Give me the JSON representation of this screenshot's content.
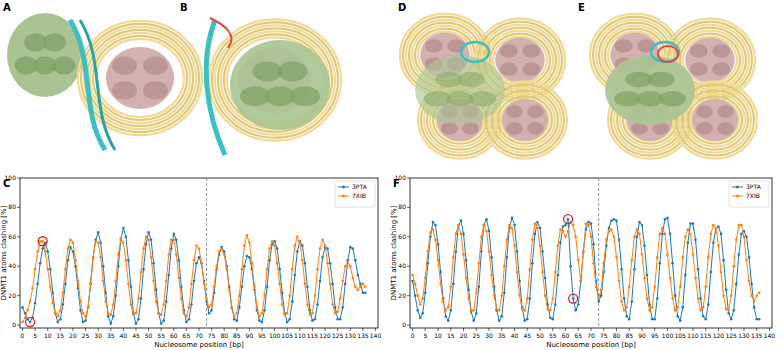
{
  "images": [
    {
      "label": "A"
    },
    {
      "label": "B"
    },
    {
      "label": "D"
    },
    {
      "label": "E"
    }
  ],
  "chart_data": [
    {
      "type": "line",
      "title": "C",
      "x_label": "Nucleosome position [bp]",
      "y_label": "DNMT1 atoms clashing [%]",
      "xlim": [
        -1,
        141
      ],
      "ylim": [
        -2,
        100
      ],
      "xticks": [
        0,
        5,
        10,
        15,
        20,
        25,
        30,
        35,
        40,
        45,
        50,
        55,
        60,
        65,
        70,
        75,
        80,
        85,
        90,
        95,
        100,
        105,
        110,
        115,
        120,
        125,
        130,
        135,
        140
      ],
      "yticks": [
        0,
        20,
        40,
        60,
        80,
        100
      ],
      "legend": "upper right",
      "marker": "o",
      "vline": 73,
      "highlights": [
        {
          "x": 3,
          "y": 2
        },
        {
          "x": 8,
          "y": 57
        }
      ],
      "x": [
        0,
        1,
        2,
        3,
        4,
        5,
        6,
        7,
        8,
        9,
        10,
        11,
        12,
        13,
        14,
        15,
        16,
        17,
        18,
        19,
        20,
        21,
        22,
        23,
        24,
        25,
        26,
        27,
        28,
        29,
        30,
        31,
        32,
        33,
        34,
        35,
        36,
        37,
        38,
        39,
        40,
        41,
        42,
        43,
        44,
        45,
        46,
        47,
        48,
        49,
        50,
        51,
        52,
        53,
        54,
        55,
        56,
        57,
        58,
        59,
        60,
        61,
        62,
        63,
        64,
        65,
        66,
        67,
        68,
        69,
        70,
        71,
        72,
        73,
        74,
        75,
        76,
        77,
        78,
        79,
        80,
        81,
        82,
        83,
        84,
        85,
        86,
        87,
        88,
        89,
        90,
        91,
        92,
        93,
        94,
        95,
        96,
        97,
        98,
        99,
        100,
        101,
        102,
        103,
        104,
        105,
        106,
        107,
        108,
        109,
        110,
        111,
        112,
        113,
        114,
        115,
        116,
        117,
        118,
        119,
        120,
        121,
        122,
        123,
        124,
        125,
        126,
        127,
        128,
        129,
        130,
        131,
        132,
        133,
        134,
        135,
        136
      ],
      "series": [
        {
          "name": "3PTA",
          "color": "#1f77b4",
          "values": [
            12,
            8,
            4,
            2,
            5,
            15,
            28,
            42,
            52,
            56,
            50,
            38,
            22,
            8,
            2,
            4,
            14,
            28,
            44,
            53,
            50,
            40,
            25,
            10,
            2,
            3,
            12,
            28,
            46,
            58,
            63,
            56,
            40,
            22,
            6,
            1,
            6,
            20,
            40,
            58,
            66,
            60,
            44,
            26,
            8,
            1,
            4,
            18,
            38,
            55,
            63,
            58,
            42,
            24,
            8,
            1,
            3,
            16,
            34,
            52,
            62,
            58,
            44,
            26,
            10,
            2,
            4,
            14,
            30,
            42,
            46,
            42,
            30,
            16,
            8,
            10,
            22,
            38,
            48,
            53,
            50,
            40,
            26,
            12,
            4,
            3,
            12,
            26,
            40,
            47,
            46,
            38,
            24,
            10,
            3,
            2,
            10,
            26,
            44,
            55,
            57,
            52,
            38,
            22,
            8,
            2,
            4,
            16,
            34,
            50,
            57,
            54,
            42,
            26,
            10,
            3,
            4,
            14,
            30,
            46,
            53,
            52,
            42,
            28,
            12,
            4,
            4,
            12,
            28,
            44,
            53,
            52,
            44,
            34,
            28,
            22,
            22
          ]
        },
        {
          "name": "7XIB",
          "color": "#ff7f0e",
          "values": [
            2,
            5,
            10,
            16,
            25,
            38,
            50,
            57,
            57,
            50,
            38,
            26,
            15,
            8,
            6,
            10,
            22,
            38,
            52,
            58,
            56,
            44,
            30,
            16,
            8,
            6,
            12,
            28,
            46,
            57,
            56,
            46,
            30,
            16,
            8,
            7,
            14,
            30,
            48,
            59,
            56,
            44,
            28,
            14,
            7,
            8,
            18,
            36,
            52,
            60,
            58,
            46,
            30,
            16,
            8,
            7,
            14,
            30,
            48,
            58,
            58,
            48,
            32,
            18,
            8,
            6,
            12,
            28,
            44,
            54,
            52,
            42,
            28,
            18,
            12,
            14,
            26,
            40,
            50,
            52,
            48,
            38,
            24,
            12,
            6,
            8,
            20,
            38,
            54,
            61,
            56,
            42,
            26,
            12,
            6,
            8,
            20,
            38,
            52,
            57,
            54,
            42,
            28,
            14,
            7,
            8,
            20,
            38,
            54,
            60,
            56,
            44,
            28,
            14,
            7,
            8,
            20,
            38,
            52,
            58,
            54,
            42,
            28,
            14,
            8,
            9,
            18,
            30,
            40,
            43,
            40,
            32,
            26,
            24,
            26,
            28,
            26
          ]
        }
      ]
    },
    {
      "type": "line",
      "title": "F",
      "x_label": "Nucleosome position [bp]",
      "y_label": "DNMT1 atoms clashing [%]",
      "xlim": [
        -1,
        141
      ],
      "ylim": [
        -2,
        100
      ],
      "xticks": [
        0,
        5,
        10,
        15,
        20,
        25,
        30,
        35,
        40,
        45,
        50,
        55,
        60,
        65,
        70,
        75,
        80,
        85,
        90,
        95,
        100,
        105,
        110,
        115,
        120,
        125,
        130,
        135,
        140
      ],
      "yticks": [
        0,
        20,
        40,
        60,
        80,
        100
      ],
      "legend": "upper right",
      "marker": "o",
      "vline": 73,
      "highlights": [
        {
          "x": 61,
          "y": 72
        },
        {
          "x": 63,
          "y": 18
        }
      ],
      "x": [
        0,
        1,
        2,
        3,
        4,
        5,
        6,
        7,
        8,
        9,
        10,
        11,
        12,
        13,
        14,
        15,
        16,
        17,
        18,
        19,
        20,
        21,
        22,
        23,
        24,
        25,
        26,
        27,
        28,
        29,
        30,
        31,
        32,
        33,
        34,
        35,
        36,
        37,
        38,
        39,
        40,
        41,
        42,
        43,
        44,
        45,
        46,
        47,
        48,
        49,
        50,
        51,
        52,
        53,
        54,
        55,
        56,
        57,
        58,
        59,
        60,
        61,
        62,
        63,
        64,
        65,
        66,
        67,
        68,
        69,
        70,
        71,
        72,
        73,
        74,
        75,
        76,
        77,
        78,
        79,
        80,
        81,
        82,
        83,
        84,
        85,
        86,
        87,
        88,
        89,
        90,
        91,
        92,
        93,
        94,
        95,
        96,
        97,
        98,
        99,
        100,
        101,
        102,
        103,
        104,
        105,
        106,
        107,
        108,
        109,
        110,
        111,
        112,
        113,
        114,
        115,
        116,
        117,
        118,
        119,
        120,
        121,
        122,
        123,
        124,
        125,
        126,
        127,
        128,
        129,
        130,
        131,
        132,
        133,
        134,
        135,
        136
      ],
      "series": [
        {
          "name": "3PTA",
          "color": "#1f77b4",
          "values": [
            30,
            20,
            10,
            5,
            8,
            22,
            42,
            60,
            70,
            68,
            55,
            36,
            18,
            6,
            3,
            10,
            28,
            50,
            68,
            71,
            62,
            44,
            24,
            9,
            3,
            8,
            26,
            50,
            68,
            72,
            64,
            46,
            26,
            10,
            3,
            6,
            22,
            46,
            66,
            73,
            68,
            50,
            30,
            12,
            3,
            4,
            18,
            42,
            62,
            70,
            66,
            50,
            32,
            14,
            5,
            4,
            14,
            34,
            56,
            67,
            68,
            72,
            40,
            18,
            10,
            14,
            30,
            50,
            65,
            70,
            69,
            55,
            30,
            16,
            20,
            36,
            54,
            66,
            71,
            72,
            71,
            58,
            38,
            18,
            6,
            4,
            16,
            38,
            60,
            70,
            68,
            54,
            34,
            14,
            4,
            4,
            18,
            42,
            62,
            72,
            73,
            62,
            42,
            20,
            6,
            3,
            12,
            34,
            56,
            69,
            69,
            58,
            38,
            18,
            6,
            4,
            14,
            36,
            56,
            66,
            67,
            62,
            44,
            24,
            8,
            4,
            10,
            28,
            48,
            62,
            64,
            60,
            46,
            28,
            12,
            4,
            4
          ]
        },
        {
          "name": "7XIB",
          "color": "#ff7f0e",
          "values": [
            34,
            28,
            20,
            14,
            18,
            32,
            50,
            63,
            65,
            58,
            44,
            28,
            16,
            10,
            12,
            26,
            46,
            62,
            68,
            62,
            48,
            32,
            18,
            10,
            10,
            22,
            42,
            60,
            68,
            64,
            50,
            34,
            20,
            11,
            10,
            20,
            40,
            58,
            68,
            66,
            54,
            36,
            20,
            11,
            10,
            18,
            38,
            58,
            69,
            66,
            54,
            36,
            20,
            11,
            10,
            18,
            36,
            54,
            65,
            64,
            60,
            64,
            70,
            68,
            60,
            44,
            30,
            50,
            69,
            68,
            60,
            42,
            26,
            18,
            24,
            42,
            58,
            64,
            65,
            60,
            46,
            30,
            16,
            10,
            12,
            26,
            44,
            60,
            65,
            62,
            48,
            32,
            18,
            10,
            12,
            26,
            46,
            62,
            66,
            62,
            48,
            32,
            18,
            10,
            12,
            26,
            46,
            60,
            65,
            62,
            48,
            32,
            18,
            10,
            12,
            26,
            46,
            62,
            68,
            66,
            54,
            36,
            20,
            11,
            10,
            20,
            40,
            58,
            68,
            68,
            60,
            44,
            30,
            20,
            16,
            20,
            22
          ]
        }
      ]
    }
  ]
}
